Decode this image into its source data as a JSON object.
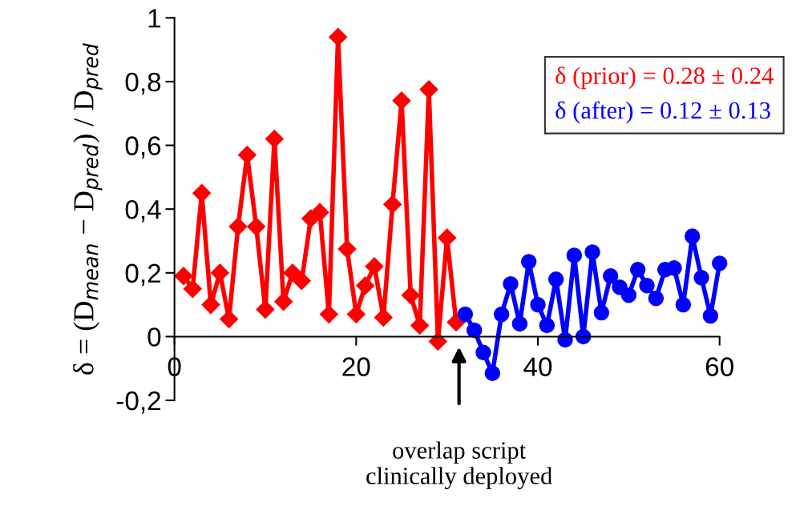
{
  "chart_data": {
    "type": "line",
    "ylabel": "δ = (D$_{mean}$ − D$_{pred}$) / D$_{pred}$",
    "series": [
      {
        "name": "δ (prior) = 0.28 ± 0.24",
        "color": "#ff0000",
        "marker": "diamond",
        "x": [
          1,
          2,
          3,
          4,
          5,
          6,
          7,
          8,
          9,
          10,
          11,
          12,
          13,
          14,
          15,
          16,
          17,
          18,
          19,
          20,
          21,
          22,
          23,
          24,
          25,
          26,
          27,
          28,
          29,
          30,
          31
        ],
        "values": [
          0.19,
          0.15,
          0.45,
          0.1,
          0.2,
          0.055,
          0.345,
          0.57,
          0.345,
          0.085,
          0.62,
          0.11,
          0.2,
          0.175,
          0.37,
          0.39,
          0.07,
          0.94,
          0.275,
          0.07,
          0.16,
          0.22,
          0.06,
          0.415,
          0.74,
          0.13,
          0.035,
          0.775,
          -0.015,
          0.31,
          0.045
        ]
      },
      {
        "name": "δ (after) = 0.12 ± 0.13",
        "color": "#0000ff",
        "marker": "circle",
        "x": [
          32,
          33,
          34,
          35,
          36,
          37,
          38,
          39,
          40,
          41,
          42,
          43,
          44,
          45,
          46,
          47,
          48,
          49,
          50,
          51,
          52,
          53,
          54,
          55,
          56,
          57,
          58,
          59,
          60
        ],
        "values": [
          0.07,
          0.02,
          -0.05,
          -0.115,
          0.07,
          0.165,
          0.04,
          0.235,
          0.1,
          0.035,
          0.18,
          -0.01,
          0.255,
          0.0,
          0.265,
          0.075,
          0.19,
          0.155,
          0.13,
          0.21,
          0.16,
          0.12,
          0.21,
          0.215,
          0.1,
          0.315,
          0.185,
          0.065,
          0.23
        ]
      }
    ],
    "annotations": [
      "overlap script\nclinically deployed"
    ],
    "xlim": [
      0,
      60
    ],
    "xticks": [
      0,
      20,
      40,
      60
    ],
    "ylim": [
      -0.2,
      1
    ],
    "yticks": [
      {
        "value": -0.2,
        "label": "-0,2"
      },
      0,
      {
        "value": 0.2,
        "label": "0,2"
      },
      {
        "value": 0.4,
        "label": "0,4"
      },
      {
        "value": 0.6,
        "label": "0,6"
      },
      {
        "value": 0.8,
        "label": "0,8"
      },
      1
    ],
    "grid": false,
    "legend": "top right",
    "line_style": "solid"
  }
}
